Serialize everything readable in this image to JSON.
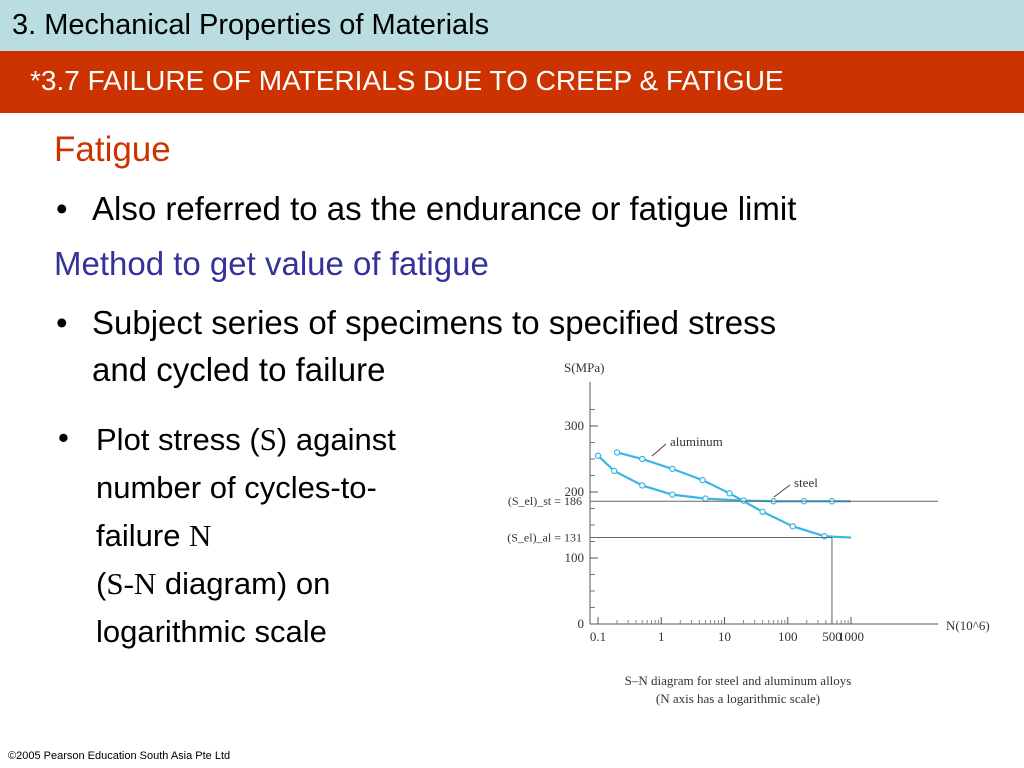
{
  "header": {
    "course_title": "3. Mechanical Properties of Materials",
    "section_title": "*3.7 FAILURE OF MATERIALS DUE TO CREEP & FATIGUE"
  },
  "content": {
    "heading": "Fatigue",
    "bullet1": "Also referred to as the endurance or fatigue limit",
    "subheading": "Method to get value of fatigue",
    "bullet2_line1": "Subject series of specimens to specified stress",
    "bullet2_line2": "and cycled to failure",
    "bullet3": {
      "l1a": "Plot stress (",
      "l1s": "S",
      "l1b": ") against",
      "l2": "number of cycles-to-",
      "l3a": "failure ",
      "l3n": "N",
      "l4a": "(",
      "l4s": "S-N",
      "l4b": " diagram) on",
      "l5": "logarithmic scale"
    }
  },
  "colors": {
    "top_bar": "#b9dde0",
    "title_bar": "#cc3300",
    "heading": "#cc3300",
    "subheading": "#33339a",
    "curve": "#3ab4e6"
  },
  "chart_data": {
    "type": "line",
    "ylabel": "S(MPa)",
    "xlabel": "N(10^6)",
    "x_scale": "log",
    "x_ticks": [
      "0.1",
      "1",
      "10",
      "100",
      "500",
      "1000"
    ],
    "x_tick_values": [
      0.1,
      1,
      10,
      100,
      500,
      1000
    ],
    "y_ticks": [
      "0",
      "100",
      "200",
      "300"
    ],
    "y_tick_values": [
      0,
      100,
      200,
      300
    ],
    "ylim": [
      0,
      330
    ],
    "series": [
      {
        "name": "aluminum",
        "x": [
          0.2,
          0.5,
          1.5,
          4.5,
          12,
          40,
          120,
          380,
          1000
        ],
        "y": [
          260,
          250,
          235,
          218,
          198,
          170,
          148,
          133,
          131
        ]
      },
      {
        "name": "steel",
        "x": [
          0.1,
          0.18,
          0.5,
          1.5,
          5,
          20,
          60,
          180,
          500,
          1000
        ],
        "y": [
          255,
          232,
          210,
          196,
          190,
          187,
          186,
          186,
          186,
          186
        ]
      }
    ],
    "annotations": [
      {
        "label": "(S_el)_st = 186",
        "value": 186
      },
      {
        "label": "(S_el)_al = 131",
        "value": 131
      }
    ],
    "caption_line1": "S–N diagram for steel and aluminum alloys",
    "caption_line2": "(N axis has a logarithmic scale)"
  },
  "footer": "©2005 Pearson Education South Asia Pte Ltd"
}
